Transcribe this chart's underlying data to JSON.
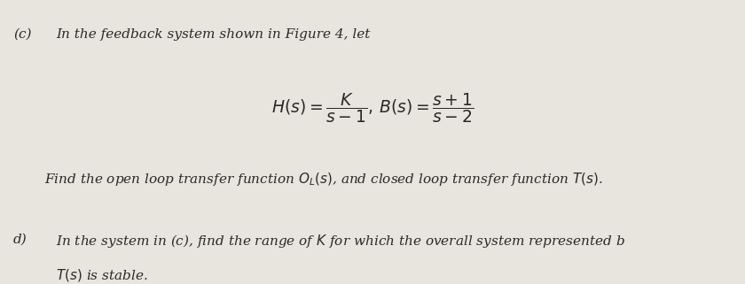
{
  "bg_color": "#e8e4de",
  "text_color": "#2a2a2a",
  "fig_width": 8.4,
  "fig_height": 3.21,
  "dpi": 100,
  "part_c_label": "(c)",
  "part_c_intro": "In the feedback system shown in Figure 4, let",
  "formula": "$H(s) = \\dfrac{K}{s-1},\\, B(s) = \\dfrac{s+1}{s-2}$",
  "part_c_find": "Find the open loop transfer function $O_L(s)$, and closed loop transfer function $T(s)$.",
  "part_d_label": "d)",
  "part_d_text1": "In the system in (c), find the range of $K$ for which the overall system represented b",
  "part_d_text2": "$T(s)$ is stable."
}
